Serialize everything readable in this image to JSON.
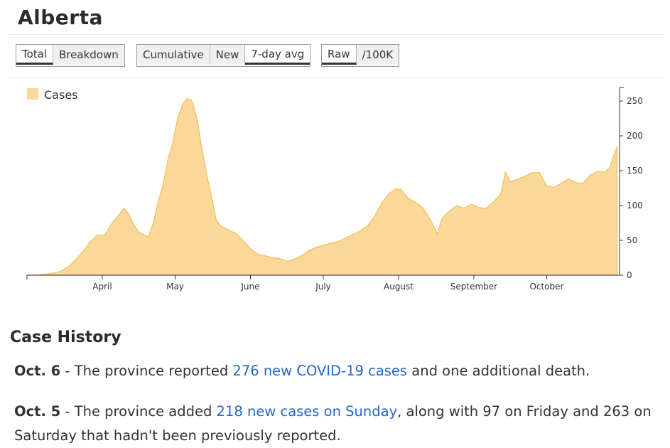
{
  "page": {
    "title": "Alberta"
  },
  "toggles": {
    "group1": [
      {
        "label": "Total",
        "active": true
      },
      {
        "label": "Breakdown",
        "active": false
      }
    ],
    "group2": [
      {
        "label": "Cumulative",
        "active": false
      },
      {
        "label": "New",
        "active": false
      },
      {
        "label": "7-day avg",
        "active": true
      }
    ],
    "group3": [
      {
        "label": "Raw",
        "active": true
      },
      {
        "label": "/100K",
        "active": false
      }
    ]
  },
  "chart_data": {
    "type": "area",
    "series": [
      {
        "name": "Cases",
        "color": "#f9d89a",
        "stroke": "#f1bf58"
      }
    ],
    "x_tick_labels": [
      "April",
      "May",
      "June",
      "July",
      "August",
      "September",
      "October"
    ],
    "y_tick_labels": [
      "0",
      "50",
      "100",
      "150",
      "200",
      "250"
    ],
    "ylim": [
      0,
      270
    ],
    "y_axis_position": "right",
    "legend_position": "top-left",
    "grid": false,
    "points": [
      [
        "03-01",
        0
      ],
      [
        "03-07",
        1
      ],
      [
        "03-12",
        3
      ],
      [
        "03-15",
        6
      ],
      [
        "03-18",
        12
      ],
      [
        "03-21",
        22
      ],
      [
        "03-24",
        34
      ],
      [
        "03-27",
        48
      ],
      [
        "03-30",
        58
      ],
      [
        "04-02",
        57
      ],
      [
        "04-05",
        75
      ],
      [
        "04-08",
        87
      ],
      [
        "04-10",
        96
      ],
      [
        "04-12",
        87
      ],
      [
        "04-14",
        72
      ],
      [
        "04-16",
        62
      ],
      [
        "04-18",
        58
      ],
      [
        "04-20",
        55
      ],
      [
        "04-22",
        75
      ],
      [
        "04-24",
        105
      ],
      [
        "04-26",
        130
      ],
      [
        "04-28",
        165
      ],
      [
        "04-30",
        190
      ],
      [
        "05-02",
        225
      ],
      [
        "05-04",
        245
      ],
      [
        "05-06",
        254
      ],
      [
        "05-08",
        250
      ],
      [
        "05-10",
        225
      ],
      [
        "05-12",
        182
      ],
      [
        "05-14",
        145
      ],
      [
        "05-16",
        112
      ],
      [
        "05-18",
        78
      ],
      [
        "05-20",
        70
      ],
      [
        "05-23",
        65
      ],
      [
        "05-26",
        60
      ],
      [
        "05-29",
        50
      ],
      [
        "06-01",
        38
      ],
      [
        "06-04",
        30
      ],
      [
        "06-07",
        28
      ],
      [
        "06-10",
        25
      ],
      [
        "06-13",
        24
      ],
      [
        "06-16",
        20
      ],
      [
        "06-19",
        23
      ],
      [
        "06-22",
        28
      ],
      [
        "06-25",
        35
      ],
      [
        "06-28",
        40
      ],
      [
        "07-01",
        43
      ],
      [
        "07-04",
        46
      ],
      [
        "07-07",
        48
      ],
      [
        "07-10",
        53
      ],
      [
        "07-13",
        58
      ],
      [
        "07-16",
        63
      ],
      [
        "07-19",
        70
      ],
      [
        "07-22",
        84
      ],
      [
        "07-25",
        103
      ],
      [
        "07-28",
        117
      ],
      [
        "07-31",
        124
      ],
      [
        "08-02",
        123
      ],
      [
        "08-05",
        110
      ],
      [
        "08-08",
        105
      ],
      [
        "08-11",
        97
      ],
      [
        "08-14",
        80
      ],
      [
        "08-17",
        60
      ],
      [
        "08-19",
        82
      ],
      [
        "08-22",
        92
      ],
      [
        "08-25",
        100
      ],
      [
        "08-28",
        96
      ],
      [
        "08-31",
        102
      ],
      [
        "09-03",
        97
      ],
      [
        "09-06",
        96
      ],
      [
        "09-09",
        105
      ],
      [
        "09-12",
        116
      ],
      [
        "09-14",
        148
      ],
      [
        "09-16",
        134
      ],
      [
        "09-19",
        138
      ],
      [
        "09-22",
        142
      ],
      [
        "09-25",
        147
      ],
      [
        "09-28",
        147
      ],
      [
        "10-01",
        128
      ],
      [
        "10-04",
        126
      ],
      [
        "10-07",
        132
      ],
      [
        "10-10",
        138
      ],
      [
        "10-13",
        133
      ],
      [
        "10-16",
        132
      ],
      [
        "10-19",
        144
      ],
      [
        "10-22",
        149
      ],
      [
        "10-25",
        148
      ],
      [
        "10-27",
        155
      ],
      [
        "10-29",
        175
      ],
      [
        "10-30",
        185
      ]
    ]
  },
  "history": {
    "title": "Case History",
    "entries": [
      {
        "date": "Oct. 6",
        "sep": " - ",
        "before": "The province reported ",
        "link": "276 new COVID-19 cases",
        "after": " and one additional death."
      },
      {
        "date": "Oct. 5",
        "sep": " - ",
        "before": "The province added ",
        "link": "218 new cases on Sunday",
        "after": ", along with 97 on Friday and 263 on Saturday that hadn't been previously reported."
      }
    ]
  }
}
